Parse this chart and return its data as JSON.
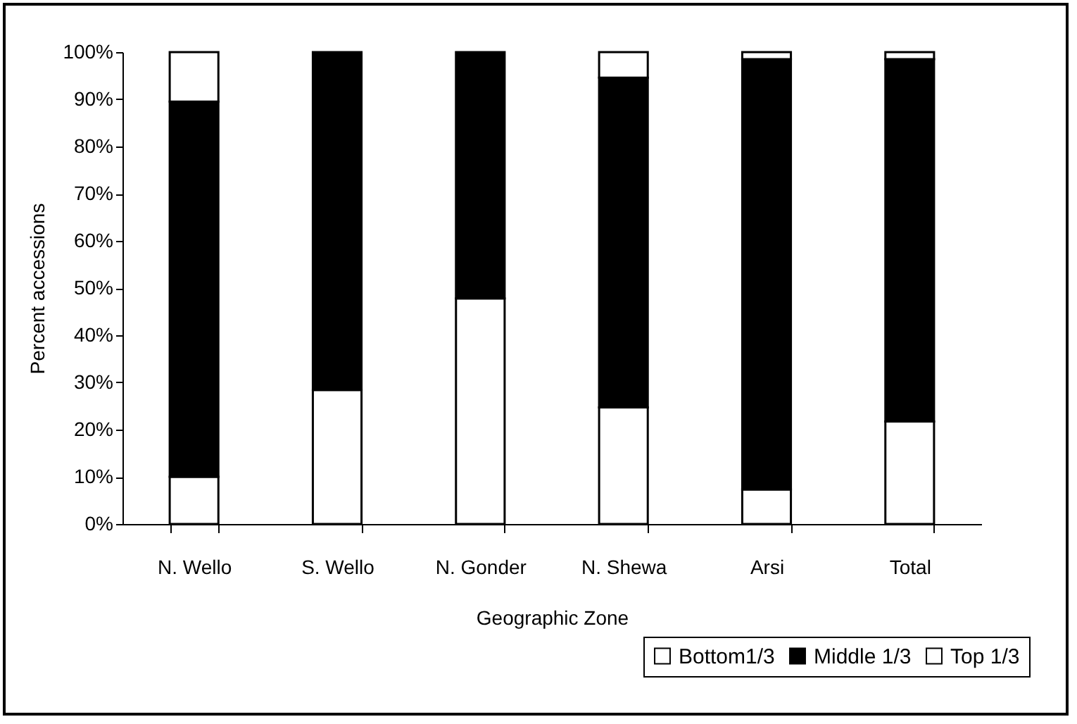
{
  "chart_data": {
    "type": "bar",
    "stacked": true,
    "xlabel": "Geographic Zone",
    "ylabel": "Percent accessions",
    "categories": [
      "N. Wello",
      "S. Wello",
      "N. Gonder",
      "N. Shewa",
      "Arsi",
      "Total"
    ],
    "series": [
      {
        "name": "Bottom1/3",
        "color": "#ffffff",
        "values": [
          10,
          28.4,
          47.8,
          24.7,
          7.3,
          21.7
        ]
      },
      {
        "name": "Middle 1/3",
        "color": "#000000",
        "values": [
          79.5,
          71.6,
          52.2,
          69.9,
          91.2,
          76.8
        ]
      },
      {
        "name": "Top 1/3",
        "color": "#ffffff",
        "values": [
          10.5,
          0,
          0,
          5.4,
          1.5,
          1.5
        ]
      }
    ],
    "ylim": [
      0,
      100
    ],
    "yticks": [
      {
        "value": 0,
        "label": "0%"
      },
      {
        "value": 10,
        "label": "10%"
      },
      {
        "value": 20,
        "label": "20%"
      },
      {
        "value": 30,
        "label": "30%"
      },
      {
        "value": 40,
        "label": "40%"
      },
      {
        "value": 50,
        "label": "50%"
      },
      {
        "value": 60,
        "label": "60%"
      },
      {
        "value": 70,
        "label": "70%"
      },
      {
        "value": 80,
        "label": "80%"
      },
      {
        "value": 90,
        "label": "90%"
      },
      {
        "value": 100,
        "label": "100%"
      }
    ],
    "legend": "bottom right"
  }
}
